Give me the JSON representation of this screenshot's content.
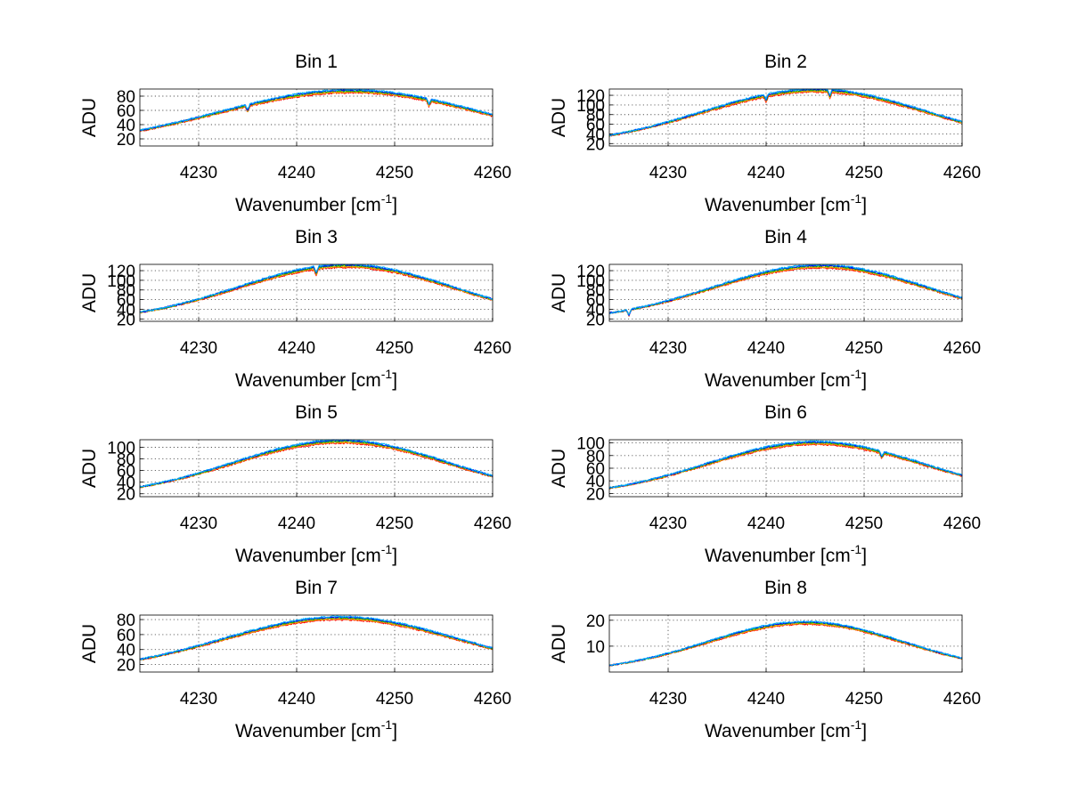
{
  "chart_data": {
    "type": "line",
    "layout": "4x2 grid of subplots",
    "xlabel_prefix": "Wavenumber [cm",
    "xlabel_sup": "-1",
    "xlabel_suffix": "]",
    "ylabel": "ADU",
    "xlim": [
      4224,
      4260
    ],
    "xticks": [
      4230,
      4240,
      4250,
      4260
    ],
    "grid": true,
    "series_colors": [
      "#ff0000",
      "#ff8000",
      "#c8b400",
      "#00b000",
      "#0000ff",
      "#00b0ff"
    ],
    "panels": [
      {
        "title": "Bin 1",
        "ylim": [
          10,
          90
        ],
        "yticks": [
          20,
          40,
          60,
          80
        ],
        "curve": {
          "base": 10,
          "peak": 87,
          "center": 4245.5,
          "width": 13.5
        },
        "dips": [
          4235,
          4253.5
        ]
      },
      {
        "title": "Bin 2",
        "ylim": [
          15,
          133
        ],
        "yticks": [
          20,
          40,
          60,
          80,
          100,
          120
        ],
        "curve": {
          "base": 15,
          "peak": 130,
          "center": 4245,
          "width": 11.5
        },
        "dips": [
          4240,
          4246.5
        ]
      },
      {
        "title": "Bin 3",
        "ylim": [
          15,
          133
        ],
        "yticks": [
          20,
          40,
          60,
          80,
          100,
          120
        ],
        "curve": {
          "base": 15,
          "peak": 130,
          "center": 4245,
          "width": 11.0
        },
        "dips": [
          4242
        ]
      },
      {
        "title": "Bin 4",
        "ylim": [
          15,
          133
        ],
        "yticks": [
          20,
          40,
          60,
          80,
          100,
          120
        ],
        "curve": {
          "base": 15,
          "peak": 129,
          "center": 4245.5,
          "width": 11.0
        },
        "dips": [
          4226
        ]
      },
      {
        "title": "Bin 5",
        "ylim": [
          15,
          113
        ],
        "yticks": [
          20,
          40,
          60,
          80,
          100
        ],
        "curve": {
          "base": 15,
          "peak": 110,
          "center": 4244.5,
          "width": 11.0
        },
        "dips": []
      },
      {
        "title": "Bin 6",
        "ylim": [
          15,
          105
        ],
        "yticks": [
          20,
          40,
          60,
          80,
          100
        ],
        "curve": {
          "base": 15,
          "peak": 100,
          "center": 4245,
          "width": 11.0
        },
        "dips": [
          4251.8
        ]
      },
      {
        "title": "Bin 7",
        "ylim": [
          10,
          86
        ],
        "yticks": [
          20,
          40,
          60,
          80
        ],
        "curve": {
          "base": 10,
          "peak": 82,
          "center": 4244.5,
          "width": 12.0
        },
        "dips": []
      },
      {
        "title": "Bin 8",
        "ylim": [
          0,
          22
        ],
        "yticks": [
          10,
          20
        ],
        "curve": {
          "base": 0,
          "peak": 19,
          "center": 4244,
          "width": 10.0
        },
        "dips": []
      }
    ]
  }
}
